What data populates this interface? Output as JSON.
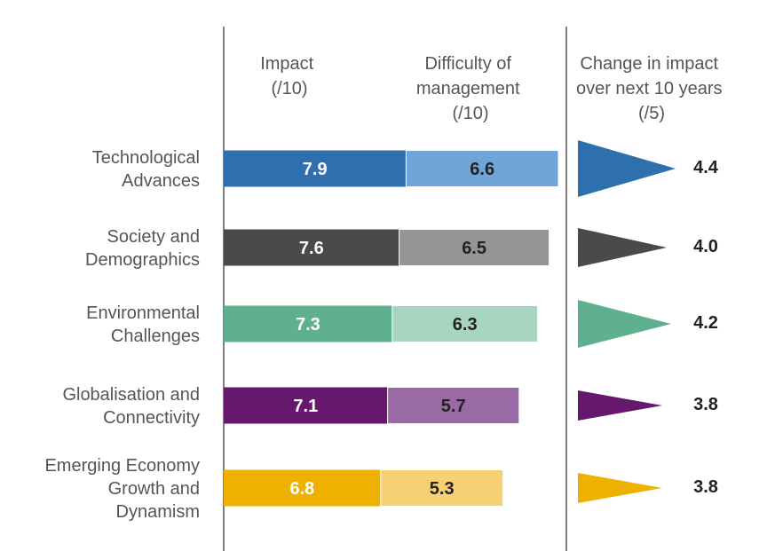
{
  "headers": {
    "impact": [
      "Impact",
      "(/10)"
    ],
    "difficulty": [
      "Difficulty of",
      "management",
      "(/10)"
    ],
    "change": [
      "Change in impact",
      "over next 10 years",
      "(/5)"
    ]
  },
  "chart_data": {
    "type": "bar",
    "orientation": "horizontal",
    "stacked": true,
    "categories": [
      [
        "Technological",
        "Advances"
      ],
      [
        "Society and",
        "Demographics"
      ],
      [
        "Environmental",
        "Challenges"
      ],
      [
        "Globalisation and",
        "Connectivity"
      ],
      [
        "Emerging Economy",
        "Growth and",
        "Dynamism"
      ]
    ],
    "series": [
      {
        "name": "Impact (/10)",
        "values": [
          7.9,
          7.6,
          7.3,
          7.1,
          6.8
        ],
        "labels": [
          "7.9",
          "7.6",
          "7.3",
          "7.1",
          "6.8"
        ]
      },
      {
        "name": "Difficulty of management (/10)",
        "values": [
          6.6,
          6.5,
          6.3,
          5.7,
          5.3
        ],
        "labels": [
          "6.6",
          "6.5",
          "6.3",
          "5.7",
          "5.3"
        ]
      },
      {
        "name": "Change in impact over next 10 years (/5)",
        "values": [
          4.4,
          4.0,
          4.2,
          3.8,
          3.8
        ],
        "labels": [
          "4.4",
          "4.0",
          "4.2",
          "3.8",
          "3.8"
        ]
      }
    ],
    "colors": {
      "dark": [
        "#2e6fad",
        "#4a4a4a",
        "#5fb08f",
        "#66186c",
        "#efb100"
      ],
      "light": [
        "#6ea5d6",
        "#959595",
        "#a8d5c1",
        "#9a6aa6",
        "#f5d173"
      ],
      "label_on_dark": "#ffffff",
      "label_on_light": "#222222"
    },
    "grid": false,
    "legend": "none"
  }
}
